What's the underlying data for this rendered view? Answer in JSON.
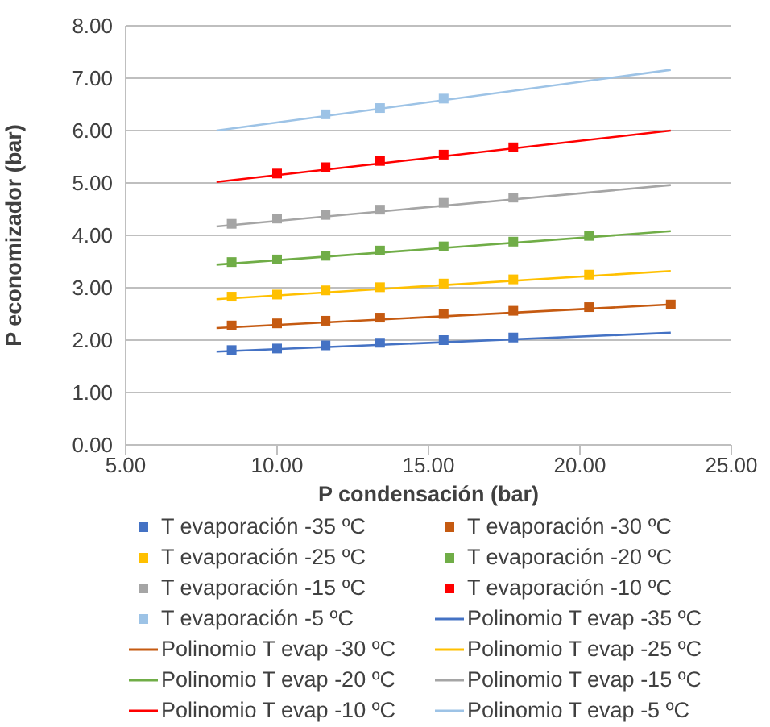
{
  "chart_data": {
    "type": "scatter",
    "xlabel": "P condensación (bar)",
    "ylabel": "P economizador (bar)",
    "xlim": [
      5,
      25
    ],
    "xticks": [
      {
        "value": 5,
        "label": "5.00"
      },
      {
        "value": 10,
        "label": "10.00"
      },
      {
        "value": 15,
        "label": "15.00"
      },
      {
        "value": 20,
        "label": "20.00"
      },
      {
        "value": 25,
        "label": "25.00"
      }
    ],
    "ylim": [
      0,
      8
    ],
    "yticks": [
      {
        "value": 0,
        "label": "0.00"
      },
      {
        "value": 1,
        "label": "1.00"
      },
      {
        "value": 2,
        "label": "2.00"
      },
      {
        "value": 3,
        "label": "3.00"
      },
      {
        "value": 4,
        "label": "4.00"
      },
      {
        "value": 5,
        "label": "5.00"
      },
      {
        "value": 6,
        "label": "6.00"
      },
      {
        "value": 7,
        "label": "7.00"
      },
      {
        "value": 8,
        "label": "8.00"
      }
    ],
    "grid": "y",
    "legend": "bottom",
    "marker": "square",
    "series": [
      {
        "name": "T evaporación -35 ºC",
        "color": "#4472c4",
        "x": [
          8.5,
          10.0,
          11.6,
          13.4,
          15.5,
          17.8
        ],
        "values": [
          1.81,
          1.84,
          1.9,
          1.95,
          2.0,
          2.05
        ]
      },
      {
        "name": "T evaporación -30 ºC",
        "color": "#c55a11",
        "x": [
          8.5,
          10.0,
          11.6,
          13.4,
          15.5,
          17.8,
          20.3,
          23.0
        ],
        "values": [
          2.28,
          2.32,
          2.37,
          2.43,
          2.5,
          2.56,
          2.63,
          2.68
        ]
      },
      {
        "name": "T evaporación -25 ºC",
        "color": "#ffc000",
        "x": [
          8.5,
          10.0,
          11.6,
          13.4,
          15.5,
          17.8,
          20.3
        ],
        "values": [
          2.83,
          2.87,
          2.95,
          3.01,
          3.08,
          3.16,
          3.25
        ]
      },
      {
        "name": "T evaporación -20 ºC",
        "color": "#70ad47",
        "x": [
          8.5,
          10.0,
          11.6,
          13.4,
          15.5,
          17.8,
          20.3
        ],
        "values": [
          3.49,
          3.54,
          3.61,
          3.71,
          3.79,
          3.88,
          3.99
        ]
      },
      {
        "name": "T evaporación -15 ºC",
        "color": "#a5a5a5",
        "x": [
          8.5,
          10.0,
          11.6,
          13.4,
          15.5,
          17.8
        ],
        "values": [
          4.22,
          4.32,
          4.39,
          4.49,
          4.62,
          4.72
        ]
      },
      {
        "name": "T evaporación -10 ºC",
        "color": "#ff0000",
        "x": [
          10.0,
          11.6,
          13.4,
          15.5,
          17.8
        ],
        "values": [
          5.18,
          5.3,
          5.42,
          5.54,
          5.68
        ]
      },
      {
        "name": "T evaporación -5 ºC",
        "color": "#9dc3e6",
        "x": [
          11.6,
          13.4,
          15.5
        ],
        "values": [
          6.31,
          6.43,
          6.61
        ]
      },
      {
        "name": "Polinomio T evap -35 ºC",
        "type": "line",
        "marker": "none",
        "color": "#4472c4",
        "x": [
          8.0,
          23.0
        ],
        "values": [
          1.78,
          2.14
        ]
      },
      {
        "name": "Polinomio T evap -30 ºC",
        "type": "line",
        "marker": "none",
        "color": "#c55a11",
        "x": [
          8.0,
          23.0
        ],
        "values": [
          2.23,
          2.68
        ]
      },
      {
        "name": "Polinomio T evap -25 ºC",
        "type": "line",
        "marker": "none",
        "color": "#ffc000",
        "x": [
          8.0,
          23.0
        ],
        "values": [
          2.78,
          3.32
        ]
      },
      {
        "name": "Polinomio T evap -20 ºC",
        "type": "line",
        "marker": "none",
        "color": "#70ad47",
        "x": [
          8.0,
          23.0
        ],
        "values": [
          3.44,
          4.08
        ]
      },
      {
        "name": "Polinomio T evap -15 ºC",
        "type": "line",
        "marker": "none",
        "color": "#a5a5a5",
        "x": [
          8.0,
          23.0
        ],
        "values": [
          4.17,
          4.96
        ]
      },
      {
        "name": "Polinomio T evap -10 ºC",
        "type": "line",
        "marker": "none",
        "color": "#ff0000",
        "x": [
          8.0,
          23.0
        ],
        "values": [
          5.02,
          6.0
        ]
      },
      {
        "name": "Polinomio T evap -5 ºC",
        "type": "line",
        "marker": "none",
        "color": "#9dc3e6",
        "x": [
          8.0,
          23.0
        ],
        "values": [
          6.0,
          7.16
        ]
      }
    ]
  }
}
